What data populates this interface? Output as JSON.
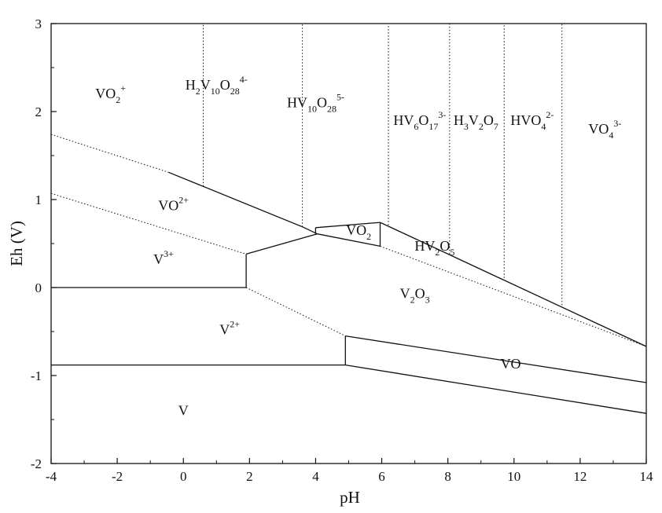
{
  "chart_data": {
    "type": "line",
    "xlabel": "pH",
    "ylabel": "Eh (V)",
    "xlim": [
      -4,
      14
    ],
    "ylim": [
      -2,
      3
    ],
    "xticks": [
      "-4",
      "-2",
      "0",
      "2",
      "4",
      "6",
      "8",
      "10",
      "12",
      "14"
    ],
    "yticks": [
      "-2",
      "-1",
      "0",
      "1",
      "2",
      "3"
    ],
    "grid": false,
    "solid_lines": [
      {
        "name": "VO2+/VO2+ boundary",
        "points": [
          [
            -0.45,
            1.31
          ],
          [
            3.6,
            0.69
          ]
        ]
      },
      {
        "name": "VO2+ top edge",
        "points": [
          [
            4.0,
            0.68
          ],
          [
            5.95,
            0.74
          ]
        ]
      },
      {
        "name": "HV10O28/HV2O5 boundary",
        "points": [
          [
            5.95,
            0.74
          ],
          [
            14.0,
            -0.67
          ]
        ]
      },
      {
        "name": "VO2 small left",
        "points": [
          [
            3.6,
            0.69
          ],
          [
            4.05,
            0.61
          ]
        ]
      },
      {
        "name": "VO2 region right edge",
        "points": [
          [
            5.95,
            0.74
          ],
          [
            5.95,
            0.47
          ]
        ]
      },
      {
        "name": "VO2 region left edge",
        "points": [
          [
            4.0,
            0.68
          ],
          [
            4.0,
            0.61
          ]
        ]
      },
      {
        "name": "VO2 region bottom",
        "points": [
          [
            4.05,
            0.61
          ],
          [
            5.95,
            0.47
          ]
        ]
      },
      {
        "name": "V3+/V2O3 boundary",
        "points": [
          [
            1.9,
            0.38
          ],
          [
            4.05,
            0.61
          ]
        ]
      },
      {
        "name": "V3+/V2+ vertical",
        "points": [
          [
            1.9,
            0.38
          ],
          [
            1.9,
            0.0
          ]
        ]
      },
      {
        "name": "V3+/V2+ horizontal",
        "points": [
          [
            -4.0,
            0.0
          ],
          [
            1.9,
            0.0
          ]
        ]
      },
      {
        "name": "V2+/V horizontal",
        "points": [
          [
            -4.0,
            -0.88
          ],
          [
            4.9,
            -0.88
          ]
        ]
      },
      {
        "name": "V2O3/V2+ vertical",
        "points": [
          [
            4.9,
            -0.88
          ],
          [
            4.9,
            -0.55
          ]
        ]
      },
      {
        "name": "V2O3/VO boundary",
        "points": [
          [
            4.9,
            -0.55
          ],
          [
            14.0,
            -1.08
          ]
        ]
      },
      {
        "name": "VO/V boundary",
        "points": [
          [
            4.9,
            -0.88
          ],
          [
            14.0,
            -1.43
          ]
        ]
      }
    ],
    "dotted_lines": [
      {
        "name": "upper water line",
        "points": [
          [
            -4.0,
            1.74
          ],
          [
            -0.45,
            1.31
          ]
        ]
      },
      {
        "name": "lower water line left",
        "points": [
          [
            -4.0,
            1.07
          ],
          [
            1.9,
            0.38
          ]
        ]
      },
      {
        "name": "lower water line right",
        "points": [
          [
            5.95,
            0.47
          ],
          [
            14.0,
            -0.67
          ]
        ]
      },
      {
        "name": "V2+/V2O3 boundary",
        "points": [
          [
            1.9,
            0.0
          ],
          [
            4.9,
            -0.55
          ]
        ]
      },
      {
        "name": "vertical 0.6",
        "points": [
          [
            0.6,
            1.15
          ],
          [
            0.6,
            3.0
          ]
        ]
      },
      {
        "name": "vertical 3.6",
        "points": [
          [
            3.6,
            0.69
          ],
          [
            3.6,
            3.0
          ]
        ]
      },
      {
        "name": "vertical 6.2",
        "points": [
          [
            6.2,
            0.71
          ],
          [
            6.2,
            3.0
          ]
        ]
      },
      {
        "name": "vertical 8.05",
        "points": [
          [
            8.05,
            0.38
          ],
          [
            8.05,
            3.0
          ]
        ]
      },
      {
        "name": "vertical 9.7",
        "points": [
          [
            9.7,
            0.11
          ],
          [
            9.7,
            3.0
          ]
        ]
      },
      {
        "name": "vertical 11.45",
        "points": [
          [
            11.45,
            -0.2
          ],
          [
            11.45,
            3.0
          ]
        ]
      }
    ],
    "region_labels": [
      {
        "id": "vo2p",
        "base": "VO",
        "sub": "2",
        "sup": "+",
        "x": -2.2,
        "y": 2.15
      },
      {
        "id": "h2v10o28",
        "parts": [
          [
            "H",
            ""
          ],
          [
            "2",
            "sub"
          ],
          [
            "V",
            ""
          ],
          [
            "10",
            "sub"
          ],
          [
            "O",
            ""
          ],
          [
            "28",
            "sub"
          ],
          [
            "4-",
            "sup"
          ]
        ],
        "x": 1.0,
        "y": 2.25
      },
      {
        "id": "hv10o28",
        "parts": [
          [
            "HV",
            ""
          ],
          [
            "10",
            "sub"
          ],
          [
            "O",
            ""
          ],
          [
            "28",
            "sub"
          ],
          [
            "5-",
            "sup"
          ]
        ],
        "x": 4.0,
        "y": 2.05
      },
      {
        "id": "hv6o17",
        "parts": [
          [
            "HV",
            ""
          ],
          [
            "6",
            "sub"
          ],
          [
            "O",
            ""
          ],
          [
            "17",
            "sub"
          ],
          [
            "3-",
            "sup"
          ]
        ],
        "x": 7.15,
        "y": 1.85
      },
      {
        "id": "h3v2o7",
        "parts": [
          [
            "H",
            ""
          ],
          [
            "3",
            "sub"
          ],
          [
            "V",
            ""
          ],
          [
            "2",
            "sub"
          ],
          [
            "O",
            ""
          ],
          [
            "7",
            "sub"
          ]
        ],
        "x": 8.85,
        "y": 1.85
      },
      {
        "id": "hvo4",
        "parts": [
          [
            "HVO",
            ""
          ],
          [
            "4",
            "sub"
          ],
          [
            "2-",
            "sup"
          ]
        ],
        "x": 10.55,
        "y": 1.85
      },
      {
        "id": "vo4",
        "parts": [
          [
            "VO",
            ""
          ],
          [
            "4",
            "sub"
          ],
          [
            "3-",
            "sup"
          ]
        ],
        "x": 12.75,
        "y": 1.75
      },
      {
        "id": "vo2plus",
        "parts": [
          [
            "VO",
            ""
          ],
          [
            "2+",
            "sup"
          ]
        ],
        "x": -0.3,
        "y": 0.88
      },
      {
        "id": "v3",
        "parts": [
          [
            "V",
            ""
          ],
          [
            "3+",
            "sup"
          ]
        ],
        "x": -0.6,
        "y": 0.27
      },
      {
        "id": "vo2",
        "parts": [
          [
            "VO",
            ""
          ],
          [
            "2",
            "sub"
          ]
        ],
        "x": 5.3,
        "y": 0.6
      },
      {
        "id": "hv2o5",
        "parts": [
          [
            "HV",
            ""
          ],
          [
            "2",
            "sub"
          ],
          [
            "O",
            ""
          ],
          [
            "5",
            "sub"
          ]
        ],
        "x": 7.6,
        "y": 0.42
      },
      {
        "id": "v2o3",
        "parts": [
          [
            "V",
            ""
          ],
          [
            "2",
            "sub"
          ],
          [
            "O",
            ""
          ],
          [
            "3",
            "sub"
          ]
        ],
        "x": 7.0,
        "y": -0.12
      },
      {
        "id": "v2",
        "parts": [
          [
            "V",
            ""
          ],
          [
            "2+",
            "sup"
          ]
        ],
        "x": 1.4,
        "y": -0.53
      },
      {
        "id": "vo",
        "parts": [
          [
            "VO",
            ""
          ]
        ],
        "x": 9.9,
        "y": -0.92
      },
      {
        "id": "v",
        "parts": [
          [
            "V",
            ""
          ]
        ],
        "x": 0.0,
        "y": -1.45
      }
    ]
  }
}
